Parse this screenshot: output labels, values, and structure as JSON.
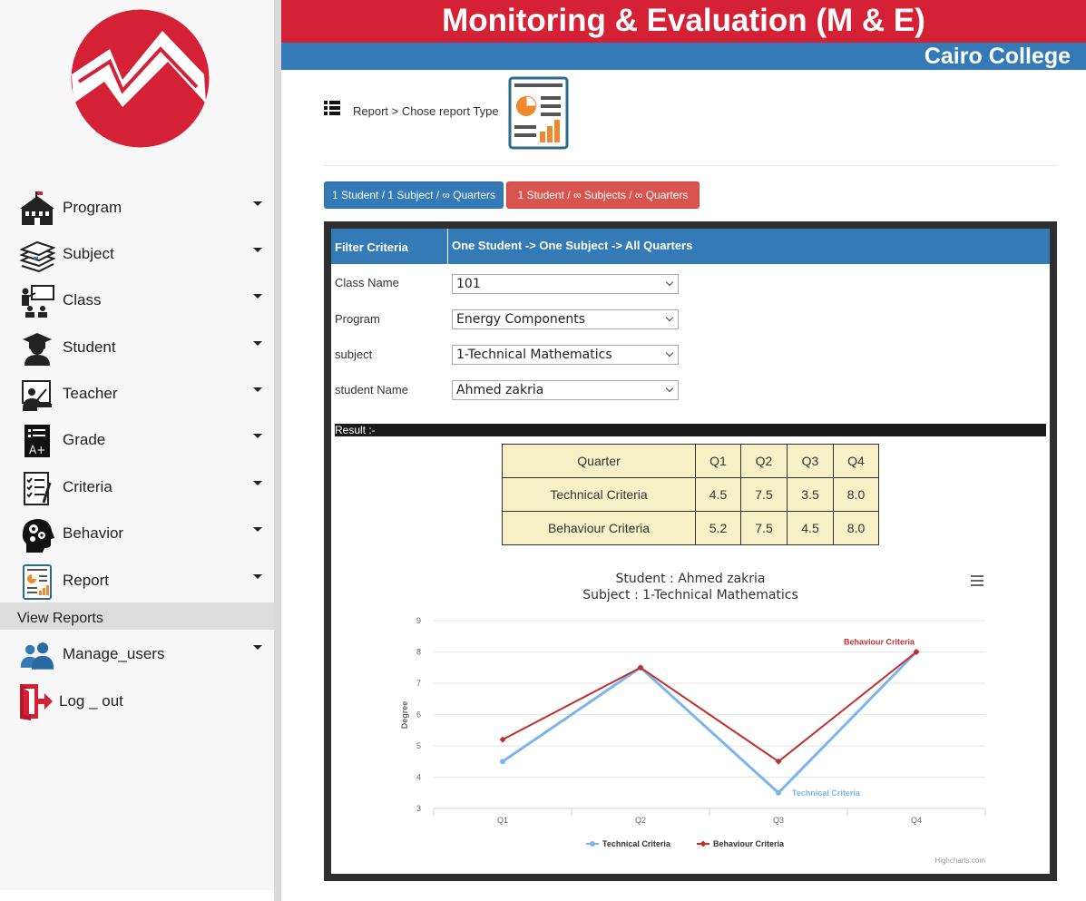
{
  "header": {
    "title": "Monitoring & Evaluation (M & E)",
    "subtitle": "Cairo College"
  },
  "sidebar": {
    "items": [
      {
        "label": "Program",
        "icon": "school-building-icon"
      },
      {
        "label": "Subject",
        "icon": "books-icon"
      },
      {
        "label": "Class",
        "icon": "classroom-icon"
      },
      {
        "label": "Student",
        "icon": "graduate-icon"
      },
      {
        "label": "Teacher",
        "icon": "teacher-icon"
      },
      {
        "label": "Grade",
        "icon": "grade-icon"
      },
      {
        "label": "Criteria",
        "icon": "checklist-icon"
      },
      {
        "label": "Behavior",
        "icon": "head-gears-icon"
      },
      {
        "label": "Report",
        "icon": "report-icon"
      }
    ],
    "active_sub": "View Reports",
    "manage_users": "Manage_users",
    "logout": "Log _ out"
  },
  "breadcrumb": "Report > Chose report Type",
  "buttons": {
    "one_subject": "1 Student / 1 Subject / ∞ Quarters",
    "all_subjects": "1 Student / ∞ Subjects / ∞ Quarters"
  },
  "panel": {
    "head_left": "Filter Criteria",
    "head_right": "One Student -> One Subject -> All Quarters",
    "filters": [
      {
        "label": "Class Name",
        "value": "101"
      },
      {
        "label": "Program",
        "value": "Energy Components"
      },
      {
        "label": "subject",
        "value": "1-Technical Mathematics"
      },
      {
        "label": "student Name",
        "value": "Ahmed zakria"
      }
    ],
    "result_label": "Result :-"
  },
  "table": {
    "header": [
      "Quarter",
      "Q1",
      "Q2",
      "Q3",
      "Q4"
    ],
    "rows": [
      [
        "Technical Criteria",
        "4.5",
        "7.5",
        "3.5",
        "8.0"
      ],
      [
        "Behaviour Criteria",
        "5.2",
        "7.5",
        "4.5",
        "8.0"
      ]
    ]
  },
  "chart_data": {
    "type": "line",
    "title": "Student : Ahmed zakria",
    "subtitle": "Subject : 1-Technical Mathematics",
    "categories": [
      "Q1",
      "Q2",
      "Q3",
      "Q4"
    ],
    "ylabel": "Degree",
    "ylim": [
      3,
      9
    ],
    "yticks": [
      3,
      4,
      5,
      6,
      7,
      8,
      9
    ],
    "series": [
      {
        "name": "Technical Criteria",
        "values": [
          4.5,
          7.5,
          3.5,
          8.0
        ],
        "color": "#7cb5ec"
      },
      {
        "name": "Behaviour Criteria",
        "values": [
          5.2,
          7.5,
          4.5,
          8.0
        ],
        "color": "#c0302f"
      }
    ],
    "legend": "bottom-center",
    "credits": "Highcharts.com",
    "grid": true
  }
}
